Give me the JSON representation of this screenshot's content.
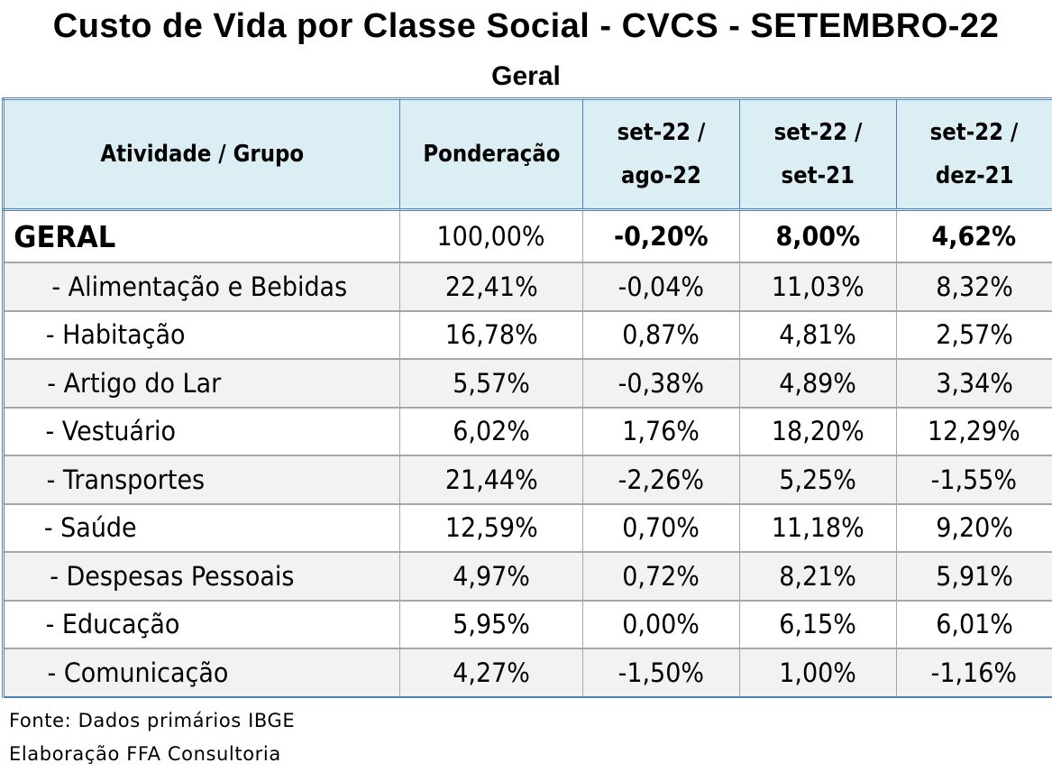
{
  "title": "Custo de Vida por Classe Social - CVCS - SETEMBRO-22",
  "subtitle": "Geral",
  "table": {
    "headers": [
      {
        "line1": "Atividade / Grupo",
        "line2": ""
      },
      {
        "line1": "Ponderação",
        "line2": ""
      },
      {
        "line1": "set-22  /",
        "line2": "ago-22"
      },
      {
        "line1": "set-22  /",
        "line2": "set-21"
      },
      {
        "line1": "set-22  /",
        "line2": "dez-21"
      }
    ],
    "geral": {
      "label": "GERAL",
      "ponderacao": "100,00%",
      "mes": "-0,20%",
      "ano12": "8,00%",
      "acumulado": "4,62%"
    },
    "rows": [
      {
        "label": "- Alimentação e Bebidas",
        "ponderacao": "22,41%",
        "mes": "-0,04%",
        "ano12": "11,03%",
        "acumulado": "8,32%"
      },
      {
        "label": "- Habitação",
        "ponderacao": "16,78%",
        "mes": "0,87%",
        "ano12": "4,81%",
        "acumulado": "2,57%"
      },
      {
        "label": "- Artigo do Lar",
        "ponderacao": "5,57%",
        "mes": "-0,38%",
        "ano12": "4,89%",
        "acumulado": "3,34%"
      },
      {
        "label": "- Vestuário",
        "ponderacao": "6,02%",
        "mes": "1,76%",
        "ano12": "18,20%",
        "acumulado": "12,29%"
      },
      {
        "label": "- Transportes",
        "ponderacao": "21,44%",
        "mes": "-2,26%",
        "ano12": "5,25%",
        "acumulado": "-1,55%"
      },
      {
        "label": "- Saúde",
        "ponderacao": "12,59%",
        "mes": "0,70%",
        "ano12": "11,18%",
        "acumulado": "9,20%"
      },
      {
        "label": "- Despesas Pessoais",
        "ponderacao": "4,97%",
        "mes": "0,72%",
        "ano12": "8,21%",
        "acumulado": "5,91%"
      },
      {
        "label": "- Educação",
        "ponderacao": "5,95%",
        "mes": "0,00%",
        "ano12": "6,15%",
        "acumulado": "6,01%"
      },
      {
        "label": "- Comunicação",
        "ponderacao": "4,27%",
        "mes": "-1,50%",
        "ano12": "1,00%",
        "acumulado": "-1,16%"
      }
    ]
  },
  "footer": {
    "source": "Fonte: Dados primários IBGE",
    "credit": "Elaboração FFA Consultoria"
  },
  "colors": {
    "header_bg": "#daeef3",
    "border_blue": "#4f81bd",
    "row_alt_bg": "#f2f2f2"
  }
}
